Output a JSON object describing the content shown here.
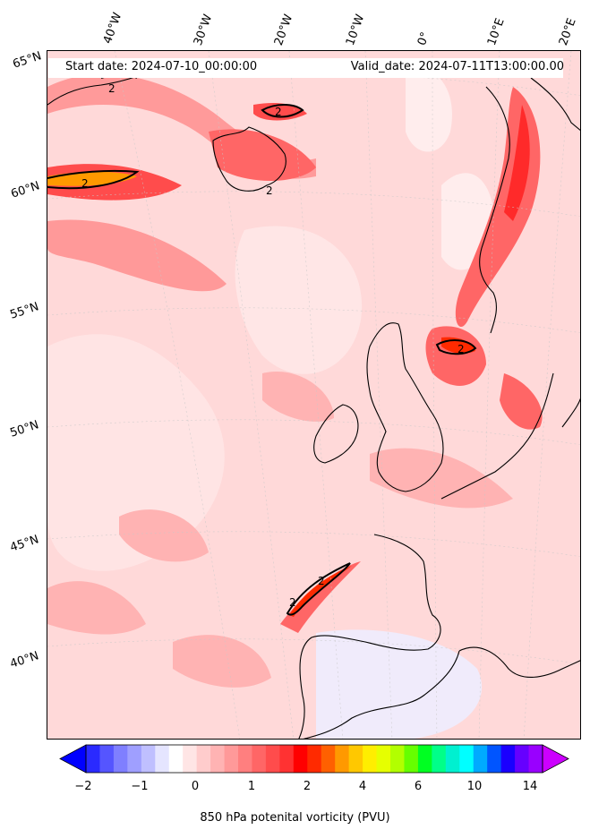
{
  "map": {
    "start_date": "Start date: 2024-07-10_00:00:00",
    "valid_date": "Valid_date: 2024-07-11T13:00:00.00",
    "lon_labels": [
      "40°W",
      "30°W",
      "20°W",
      "10°W",
      "0°",
      "10°E",
      "20°E"
    ],
    "lat_labels": [
      "65°N",
      "60°N",
      "55°N",
      "50°N",
      "45°N",
      "40°N"
    ],
    "contour_labels": [
      "2",
      "2",
      "2",
      "2",
      "2",
      "2",
      "2"
    ]
  },
  "colorbar": {
    "title": "850 hPa potenital vorticity (PVU)",
    "tick_labels": [
      "−2",
      "−1",
      "0",
      "1",
      "2",
      "4",
      "6",
      "10",
      "14"
    ],
    "colors": [
      "#0000ff",
      "#2a2aff",
      "#5555ff",
      "#7f7fff",
      "#9f9fff",
      "#bfbfff",
      "#e5e5ff",
      "#ffffff",
      "#ffe5e5",
      "#ffcccc",
      "#ffb3b3",
      "#ff9999",
      "#ff7f7f",
      "#ff6666",
      "#ff4c4c",
      "#ff3232",
      "#ff0000",
      "#ff2a00",
      "#ff6000",
      "#ff9900",
      "#ffc800",
      "#ffee00",
      "#e6ff00",
      "#b2ff00",
      "#66ff00",
      "#00ff22",
      "#00ff88",
      "#00f0d0",
      "#00ffff",
      "#00aaff",
      "#0055ff",
      "#1a00ff",
      "#6600ff",
      "#9900ff",
      "#cc00ff"
    ]
  }
}
